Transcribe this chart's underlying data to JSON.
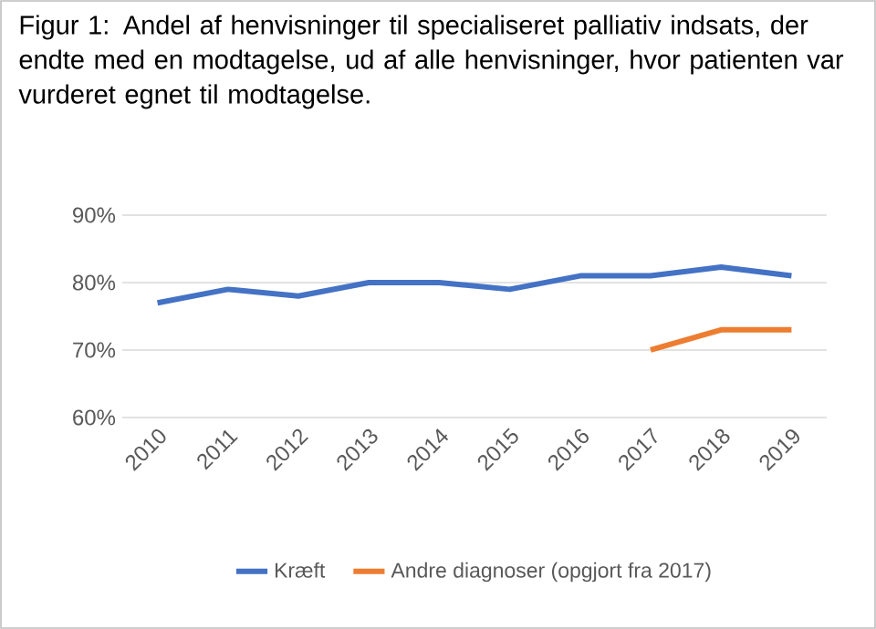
{
  "chart_data": {
    "type": "line",
    "title": "Figur 1: Andel af henvisninger til specialiseret palliativ indsats, der endte med en modtagelse, ud af alle henvisninger, hvor patienten var vurderet egnet til modtagelse.",
    "categories": [
      "2010",
      "2011",
      "2012",
      "2013",
      "2014",
      "2015",
      "2016",
      "2017",
      "2018",
      "2019"
    ],
    "series": [
      {
        "name": "Kræft",
        "color": "#4472c4",
        "values": [
          77,
          79,
          78,
          80,
          80,
          79,
          81,
          81,
          82.3,
          81
        ]
      },
      {
        "name": "Andre diagnoser (opgjort fra 2017)",
        "color": "#ed7d31",
        "values": [
          null,
          null,
          null,
          null,
          null,
          null,
          null,
          70,
          73,
          73
        ]
      }
    ],
    "ylim": [
      60,
      90
    ],
    "yticks": [
      {
        "value": 60,
        "label": "60%"
      },
      {
        "value": 70,
        "label": "70%"
      },
      {
        "value": 80,
        "label": "80%"
      },
      {
        "value": 90,
        "label": "90%"
      }
    ],
    "grid": "y",
    "legend": "bottom",
    "marker": "none",
    "line_style": "solid"
  }
}
